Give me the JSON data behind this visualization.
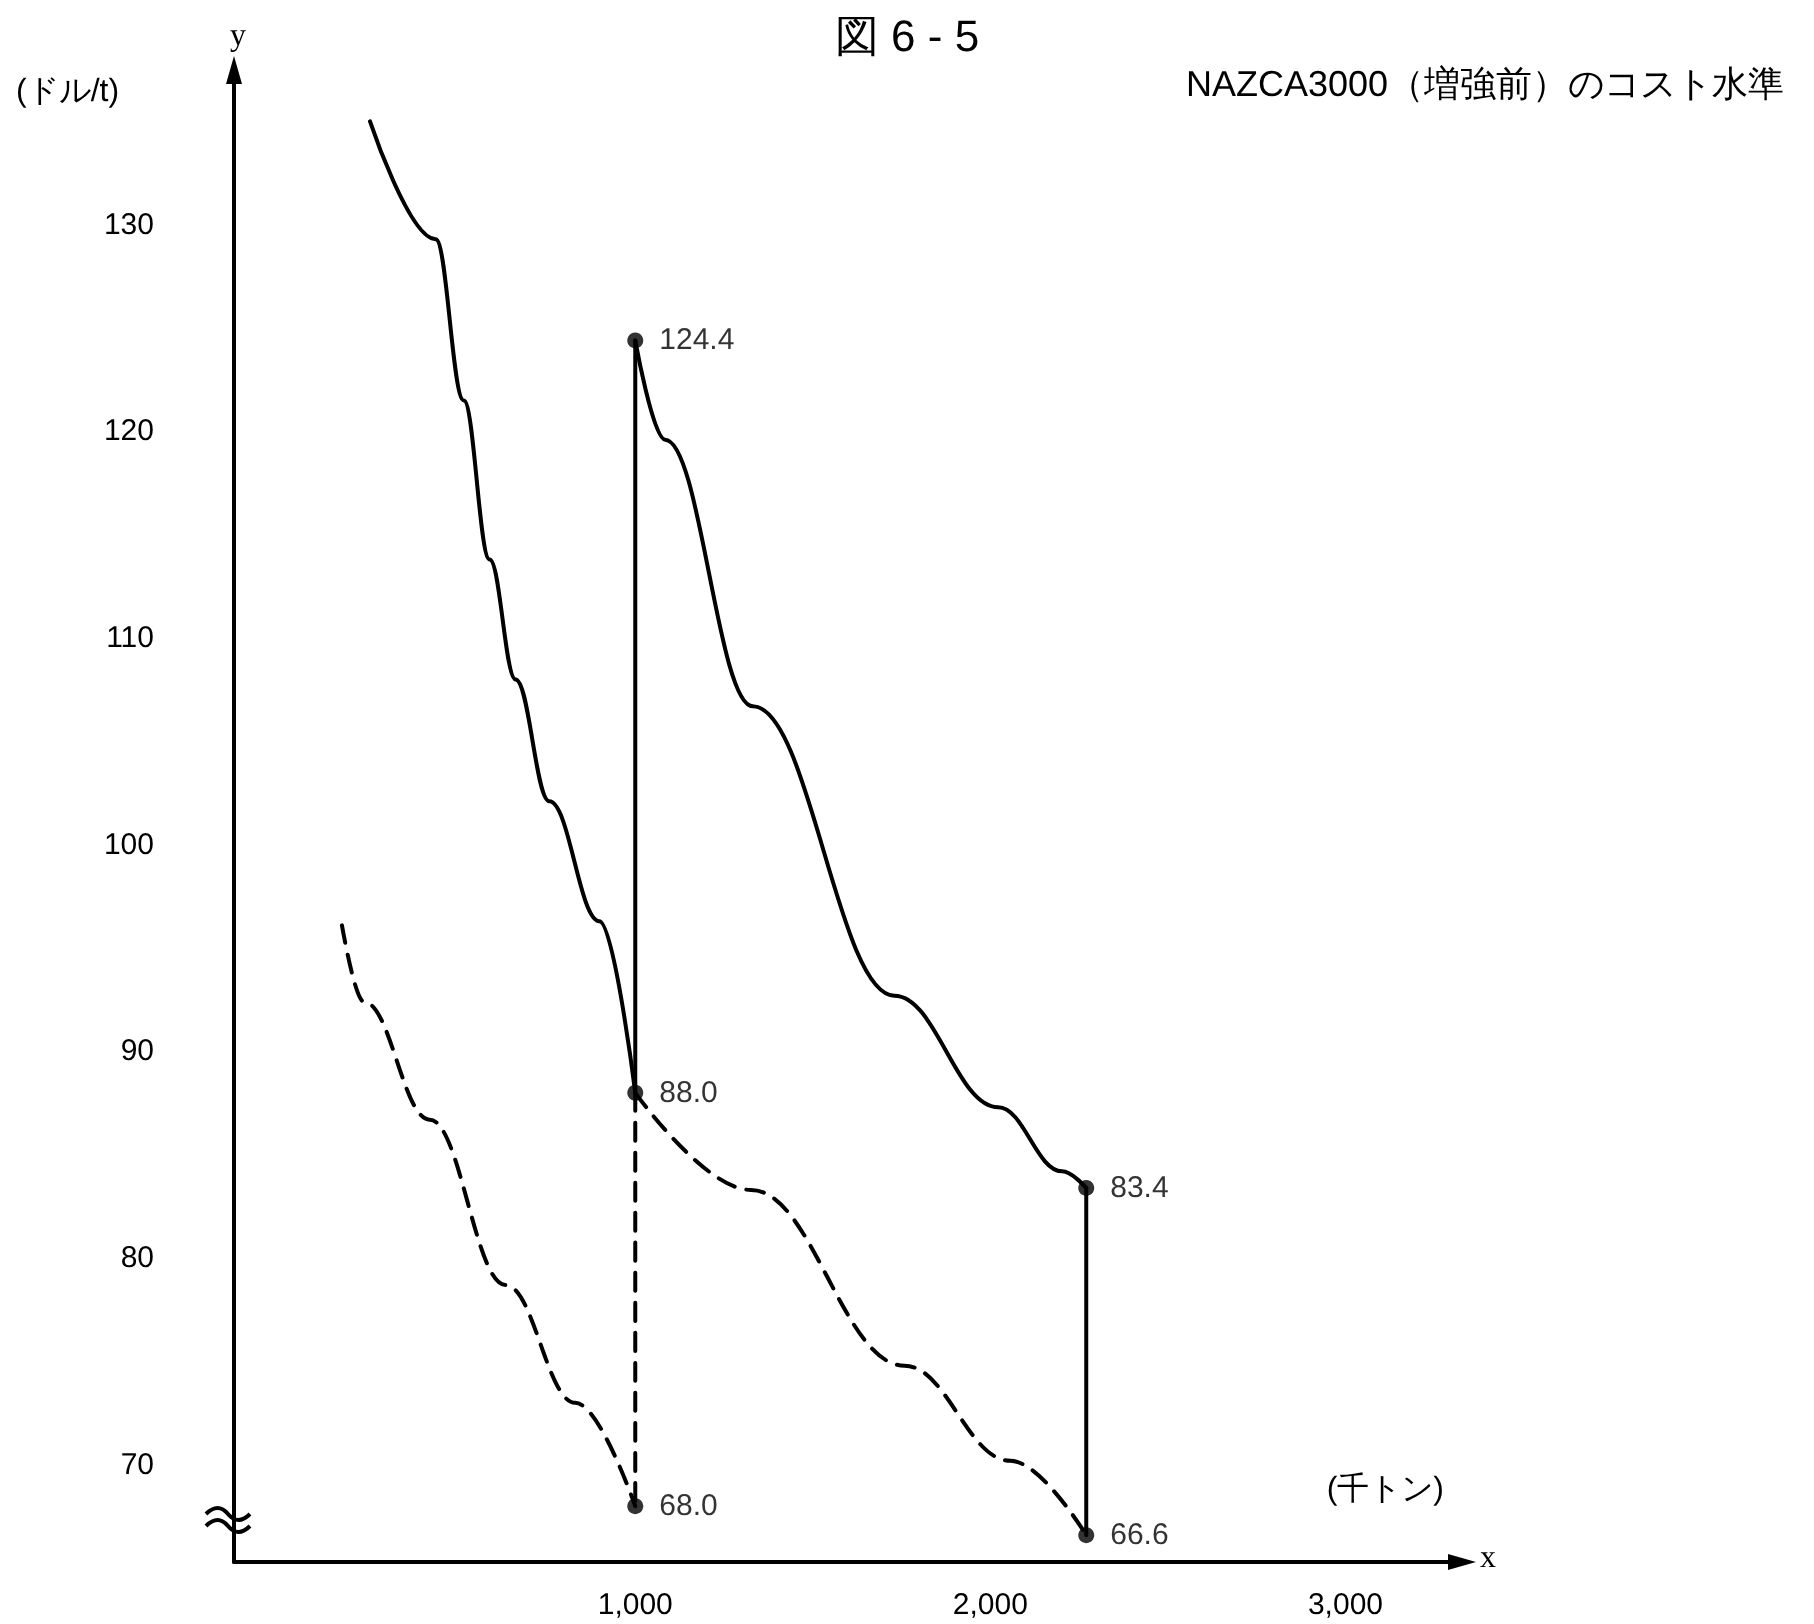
{
  "chart_data": {
    "type": "line",
    "title": "図 6 - 5",
    "subtitle": "NAZCA3000（増強前）のコスト水準",
    "ylabel": "(ドル/t)",
    "xlabel": "(千トン)",
    "annotations": [
      "y",
      "x"
    ],
    "xlim": [
      -130,
      3300
    ],
    "ylim": [
      65.3,
      137
    ],
    "xticks": [
      {
        "value": 1000,
        "label": "1,000"
      },
      {
        "value": 2000,
        "label": "2,000"
      },
      {
        "value": 3000,
        "label": "3,000"
      }
    ],
    "yticks": [
      70,
      80,
      90,
      100,
      110,
      120,
      130
    ],
    "grid": false,
    "series": [
      {
        "color": "#000000",
        "line_style": "solid",
        "marker": "none",
        "x": [
          253,
          438,
          517,
          590,
          663,
          758,
          899,
          1000
        ],
        "values": [
          135,
          129.3,
          121.5,
          113.8,
          108.0,
          102.1,
          96.3,
          88.0
        ]
      },
      {
        "color": "#000000",
        "line_style": "solid",
        "marker": "none",
        "x": [
          1000,
          1000
        ],
        "values": [
          88.0,
          124.4
        ]
      },
      {
        "color": "#000000",
        "line_style": "solid",
        "marker": "none",
        "x": [
          1000,
          1084,
          1331,
          1730,
          2022,
          2202,
          2270
        ],
        "values": [
          124.4,
          119.6,
          106.7,
          92.7,
          87.3,
          84.2,
          83.4
        ]
      },
      {
        "color": "#000000",
        "line_style": "solid",
        "marker": "none",
        "x": [
          2270,
          2270
        ],
        "values": [
          83.4,
          66.6
        ]
      },
      {
        "color": "#000000",
        "line_style": "dashed",
        "marker": "none",
        "x": [
          1000,
          1000
        ],
        "values": [
          88.0,
          68.0
        ]
      },
      {
        "color": "#000000",
        "line_style": "dashed",
        "marker": "none",
        "x": [
          174,
          236,
          421,
          635,
          831,
          1000
        ],
        "values": [
          96.1,
          92.4,
          86.7,
          78.7,
          73.0,
          68.0
        ]
      },
      {
        "color": "#000000",
        "line_style": "dashed",
        "marker": "none",
        "x": [
          1000,
          1326,
          1758,
          2056,
          2270
        ],
        "values": [
          88.0,
          83.3,
          74.8,
          70.2,
          66.6
        ]
      },
      {
        "type": "scatter",
        "color": "#000000",
        "marker": "circle",
        "x": [
          1000,
          1000,
          1000,
          2270,
          2270
        ],
        "values": [
          124.4,
          88.0,
          68.0,
          83.4,
          66.6
        ],
        "value_labels": [
          "124.4",
          "88.0",
          "68.0",
          "83.4",
          "66.6"
        ]
      }
    ]
  }
}
